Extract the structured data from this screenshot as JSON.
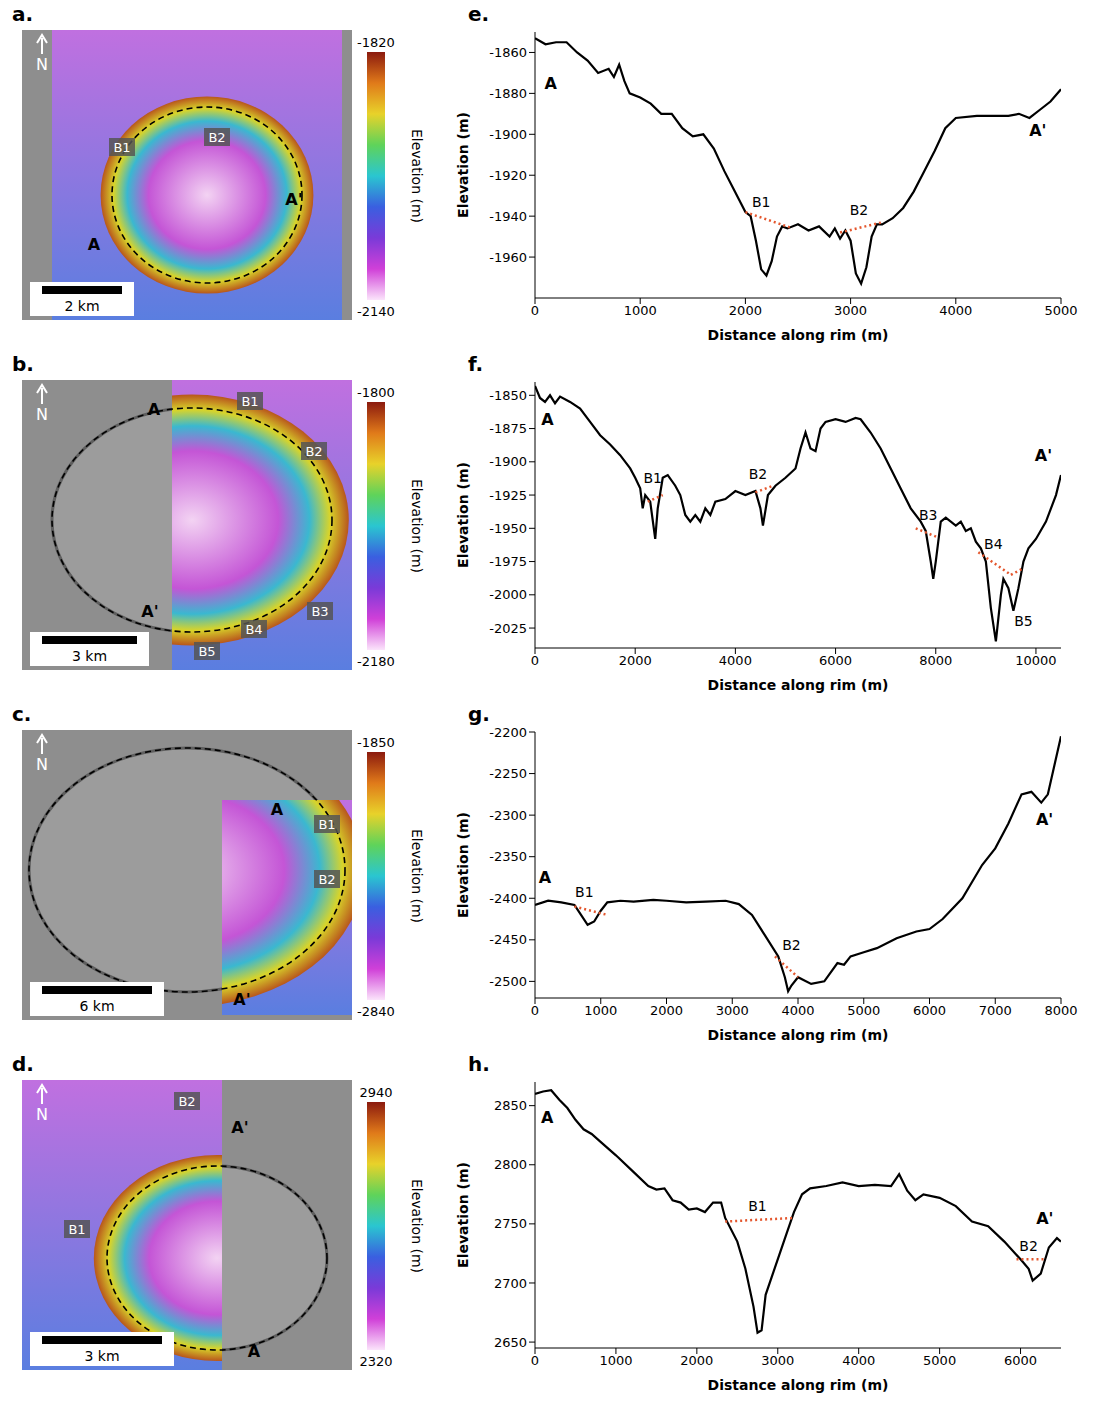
{
  "chart_data": [
    {
      "type": "map",
      "label": "a.",
      "north": "N",
      "scale_bar": "2 km",
      "colorbar": {
        "title": "Elevation (m)",
        "range": [
          -2140,
          -1820
        ],
        "ticks": [
          -2140,
          -1820
        ]
      },
      "annotations": [
        "B1",
        "B2",
        "A",
        "A'"
      ]
    },
    {
      "type": "map",
      "label": "b.",
      "north": "N",
      "scale_bar": "3 km",
      "colorbar": {
        "title": "Elevation (m)",
        "range": [
          -2180,
          -1800
        ],
        "ticks": [
          -2180,
          -1800
        ]
      },
      "annotations": [
        "A",
        "B1",
        "B2",
        "B3",
        "B4",
        "B5",
        "A'"
      ]
    },
    {
      "type": "map",
      "label": "c.",
      "north": "N",
      "scale_bar": "6 km",
      "colorbar": {
        "title": "Elevation (m)",
        "range": [
          -2840,
          -1850
        ],
        "ticks": [
          -2840,
          -1850
        ]
      },
      "annotations": [
        "A",
        "B1",
        "B2",
        "A'"
      ]
    },
    {
      "type": "map",
      "label": "d.",
      "north": "N",
      "scale_bar": "3 km",
      "colorbar": {
        "title": "Elevation (m)",
        "range": [
          2320,
          2940
        ],
        "ticks": [
          2320,
          2940
        ]
      },
      "annotations": [
        "B2",
        "A'",
        "B1",
        "A"
      ]
    },
    {
      "type": "line",
      "label": "e.",
      "x_label": "Distance along rim (m)",
      "y_label": "Elevation (m)",
      "color": "#000000",
      "xlim": [
        0,
        5000
      ],
      "xticks": [
        0,
        1000,
        2000,
        3000,
        4000,
        5000
      ],
      "ylim": [
        -1980,
        -1850
      ],
      "yticks": [
        -1960,
        -1940,
        -1920,
        -1900,
        -1880,
        -1860
      ],
      "x": [
        0,
        100,
        200,
        300,
        400,
        500,
        600,
        700,
        750,
        800,
        850,
        900,
        1000,
        1100,
        1200,
        1300,
        1400,
        1500,
        1600,
        1700,
        1800,
        1900,
        2000,
        2050,
        2100,
        2150,
        2200,
        2250,
        2300,
        2350,
        2400,
        2500,
        2600,
        2700,
        2800,
        2850,
        2900,
        2950,
        3000,
        3050,
        3100,
        3150,
        3200,
        3250,
        3300,
        3400,
        3500,
        3600,
        3700,
        3800,
        3900,
        4000,
        4200,
        4500,
        4600,
        4700,
        4800,
        4900,
        5000
      ],
      "values": [
        -1853,
        -1856,
        -1855,
        -1855,
        -1860,
        -1864,
        -1870,
        -1868,
        -1872,
        -1866,
        -1874,
        -1880,
        -1882,
        -1885,
        -1890,
        -1890,
        -1897,
        -1901,
        -1900,
        -1907,
        -1918,
        -1928,
        -1938,
        -1940,
        -1952,
        -1966,
        -1969,
        -1962,
        -1950,
        -1945,
        -1946,
        -1944,
        -1947,
        -1945,
        -1950,
        -1946,
        -1951,
        -1947,
        -1952,
        -1968,
        -1973,
        -1965,
        -1950,
        -1944,
        -1944,
        -1941,
        -1936,
        -1928,
        -1918,
        -1908,
        -1897,
        -1892,
        -1891,
        -1891,
        -1890,
        -1892,
        -1888,
        -1884,
        -1878
      ],
      "segments": [
        {
          "label": "B1",
          "color": "#e4572e",
          "x": [
            2000,
            2450
          ],
          "y": [
            -1938,
            -1946
          ],
          "label_at": [
            2150,
            -1933
          ]
        },
        {
          "label": "B2",
          "color": "#e4572e",
          "x": [
            2900,
            3300
          ],
          "y": [
            -1948,
            -1943
          ],
          "label_at": [
            3080,
            -1937
          ]
        }
      ],
      "point_labels": [
        {
          "text": "A",
          "at": [
            150,
            -1875
          ]
        },
        {
          "text": "A'",
          "at": [
            4780,
            -1898
          ]
        }
      ]
    },
    {
      "type": "line",
      "label": "f.",
      "x_label": "Distance along rim (m)",
      "y_label": "Elevation (m)",
      "color": "#000000",
      "xlim": [
        0,
        10500
      ],
      "xticks": [
        0,
        2000,
        4000,
        6000,
        8000,
        10000
      ],
      "ylim": [
        -2040,
        -1840
      ],
      "yticks": [
        -2025,
        -2000,
        -1975,
        -1950,
        -1925,
        -1900,
        -1875,
        -1850
      ],
      "x": [
        0,
        100,
        200,
        300,
        400,
        500,
        700,
        900,
        1100,
        1300,
        1500,
        1700,
        1900,
        2000,
        2100,
        2150,
        2200,
        2300,
        2400,
        2450,
        2550,
        2650,
        2800,
        2900,
        3000,
        3100,
        3200,
        3300,
        3400,
        3500,
        3600,
        3800,
        4000,
        4200,
        4400,
        4500,
        4550,
        4650,
        4800,
        5000,
        5200,
        5300,
        5400,
        5500,
        5600,
        5700,
        5800,
        6000,
        6200,
        6400,
        6500,
        6700,
        6900,
        7100,
        7300,
        7500,
        7700,
        7800,
        7900,
        7950,
        8000,
        8100,
        8200,
        8400,
        8500,
        8600,
        8700,
        8800,
        8900,
        9000,
        9100,
        9200,
        9300,
        9350,
        9450,
        9550,
        9650,
        9750,
        9850,
        10000,
        10200,
        10400,
        10500
      ],
      "values": [
        -1843,
        -1852,
        -1855,
        -1850,
        -1856,
        -1851,
        -1855,
        -1860,
        -1870,
        -1880,
        -1887,
        -1895,
        -1905,
        -1912,
        -1920,
        -1935,
        -1925,
        -1930,
        -1958,
        -1935,
        -1912,
        -1910,
        -1918,
        -1925,
        -1940,
        -1945,
        -1940,
        -1945,
        -1935,
        -1940,
        -1930,
        -1928,
        -1922,
        -1925,
        -1922,
        -1935,
        -1948,
        -1925,
        -1918,
        -1912,
        -1905,
        -1890,
        -1878,
        -1890,
        -1892,
        -1875,
        -1870,
        -1868,
        -1870,
        -1867,
        -1868,
        -1878,
        -1890,
        -1905,
        -1920,
        -1935,
        -1945,
        -1952,
        -1975,
        -1988,
        -1975,
        -1945,
        -1942,
        -1948,
        -1945,
        -1952,
        -1950,
        -1960,
        -1965,
        -1975,
        -2010,
        -2035,
        -2000,
        -1988,
        -1995,
        -2012,
        -1995,
        -1975,
        -1965,
        -1958,
        -1945,
        -1925,
        -1910
      ],
      "segments": [
        {
          "label": "B1",
          "color": "#e4572e",
          "x": [
            2250,
            2550
          ],
          "y": [
            -1930,
            -1925
          ],
          "label_at": [
            2350,
            -1912
          ]
        },
        {
          "label": "B2",
          "color": "#e4572e",
          "x": [
            4400,
            4750
          ],
          "y": [
            -1923,
            -1918
          ],
          "label_at": [
            4450,
            -1909
          ]
        },
        {
          "label": "B3",
          "color": "#e4572e",
          "x": [
            7600,
            8050
          ],
          "y": [
            -1950,
            -1957
          ],
          "label_at": [
            7850,
            -1940
          ]
        },
        {
          "label": "B4",
          "color": "#e4572e",
          "x": [
            8850,
            9500
          ],
          "y": [
            -1968,
            -1985
          ],
          "label_at": [
            9150,
            -1962
          ]
        },
        {
          "label": "B5",
          "color": "#e4572e",
          "x": [
            9500,
            9750
          ],
          "y": [
            -1985,
            -1980
          ],
          "label_at": [
            9750,
            -2020
          ]
        }
      ],
      "point_labels": [
        {
          "text": "A",
          "at": [
            250,
            -1868
          ]
        },
        {
          "text": "A'",
          "at": [
            10150,
            -1895
          ]
        }
      ]
    },
    {
      "type": "line",
      "label": "g.",
      "x_label": "Distance along rim (m)",
      "y_label": "Elevation (m)",
      "color": "#000000",
      "xlim": [
        0,
        8000
      ],
      "xticks": [
        0,
        1000,
        2000,
        3000,
        4000,
        5000,
        6000,
        7000,
        8000
      ],
      "ylim": [
        -2520,
        -2200
      ],
      "yticks": [
        -2500,
        -2450,
        -2400,
        -2350,
        -2300,
        -2250,
        -2200
      ],
      "x": [
        0,
        200,
        400,
        600,
        700,
        800,
        900,
        1000,
        1100,
        1300,
        1500,
        1800,
        2000,
        2300,
        2600,
        2900,
        3100,
        3300,
        3500,
        3700,
        3800,
        3850,
        3900,
        4000,
        4200,
        4400,
        4600,
        4700,
        4800,
        5000,
        5200,
        5500,
        5800,
        6000,
        6200,
        6500,
        6800,
        7000,
        7200,
        7400,
        7550,
        7700,
        7800,
        7900,
        8000
      ],
      "values": [
        -2408,
        -2403,
        -2405,
        -2408,
        -2420,
        -2432,
        -2428,
        -2415,
        -2405,
        -2403,
        -2404,
        -2402,
        -2403,
        -2405,
        -2404,
        -2403,
        -2407,
        -2420,
        -2445,
        -2470,
        -2495,
        -2512,
        -2505,
        -2495,
        -2503,
        -2500,
        -2478,
        -2480,
        -2470,
        -2465,
        -2460,
        -2448,
        -2440,
        -2437,
        -2425,
        -2400,
        -2360,
        -2340,
        -2310,
        -2275,
        -2272,
        -2285,
        -2275,
        -2240,
        -2205
      ],
      "segments": [
        {
          "label": "B1",
          "color": "#e4572e",
          "x": [
            600,
            1100
          ],
          "y": [
            -2410,
            -2420
          ],
          "label_at": [
            750,
            -2392
          ]
        },
        {
          "label": "B2",
          "color": "#e4572e",
          "x": [
            3650,
            4000
          ],
          "y": [
            -2470,
            -2495
          ],
          "label_at": [
            3900,
            -2456
          ]
        }
      ],
      "point_labels": [
        {
          "text": "A",
          "at": [
            150,
            -2375
          ]
        },
        {
          "text": "A'",
          "at": [
            7750,
            -2305
          ]
        }
      ]
    },
    {
      "type": "line",
      "label": "h.",
      "x_label": "Distance along rim (m)",
      "y_label": "Elevation (m)",
      "color": "#000000",
      "xlim": [
        0,
        6500
      ],
      "xticks": [
        0,
        1000,
        2000,
        3000,
        4000,
        5000,
        6000
      ],
      "ylim": [
        2645,
        2870
      ],
      "yticks": [
        2650,
        2700,
        2750,
        2800,
        2850
      ],
      "x": [
        0,
        100,
        200,
        300,
        400,
        500,
        600,
        700,
        800,
        1000,
        1200,
        1400,
        1500,
        1600,
        1700,
        1800,
        1900,
        2000,
        2100,
        2200,
        2300,
        2350,
        2500,
        2600,
        2700,
        2750,
        2800,
        2850,
        2950,
        3100,
        3200,
        3300,
        3400,
        3600,
        3800,
        4000,
        4200,
        4400,
        4500,
        4600,
        4700,
        4800,
        5000,
        5200,
        5400,
        5600,
        5800,
        6000,
        6100,
        6150,
        6250,
        6350,
        6450,
        6500
      ],
      "values": [
        2860,
        2862,
        2863,
        2855,
        2848,
        2838,
        2830,
        2826,
        2820,
        2808,
        2795,
        2782,
        2779,
        2780,
        2770,
        2768,
        2762,
        2763,
        2760,
        2768,
        2768,
        2755,
        2735,
        2712,
        2680,
        2658,
        2660,
        2690,
        2710,
        2740,
        2760,
        2775,
        2780,
        2782,
        2785,
        2782,
        2783,
        2782,
        2792,
        2778,
        2770,
        2775,
        2772,
        2765,
        2752,
        2748,
        2735,
        2720,
        2712,
        2702,
        2708,
        2730,
        2738,
        2735
      ],
      "segments": [
        {
          "label": "B1",
          "color": "#e4572e",
          "x": [
            2350,
            3200
          ],
          "y": [
            2752,
            2755
          ],
          "label_at": [
            2750,
            2765
          ]
        },
        {
          "label": "B2",
          "color": "#e4572e",
          "x": [
            5950,
            6300
          ],
          "y": [
            2720,
            2720
          ],
          "label_at": [
            6100,
            2731
          ]
        }
      ],
      "point_labels": [
        {
          "text": "A",
          "at": [
            150,
            2840
          ]
        },
        {
          "text": "A'",
          "at": [
            6300,
            2755
          ]
        }
      ]
    }
  ]
}
